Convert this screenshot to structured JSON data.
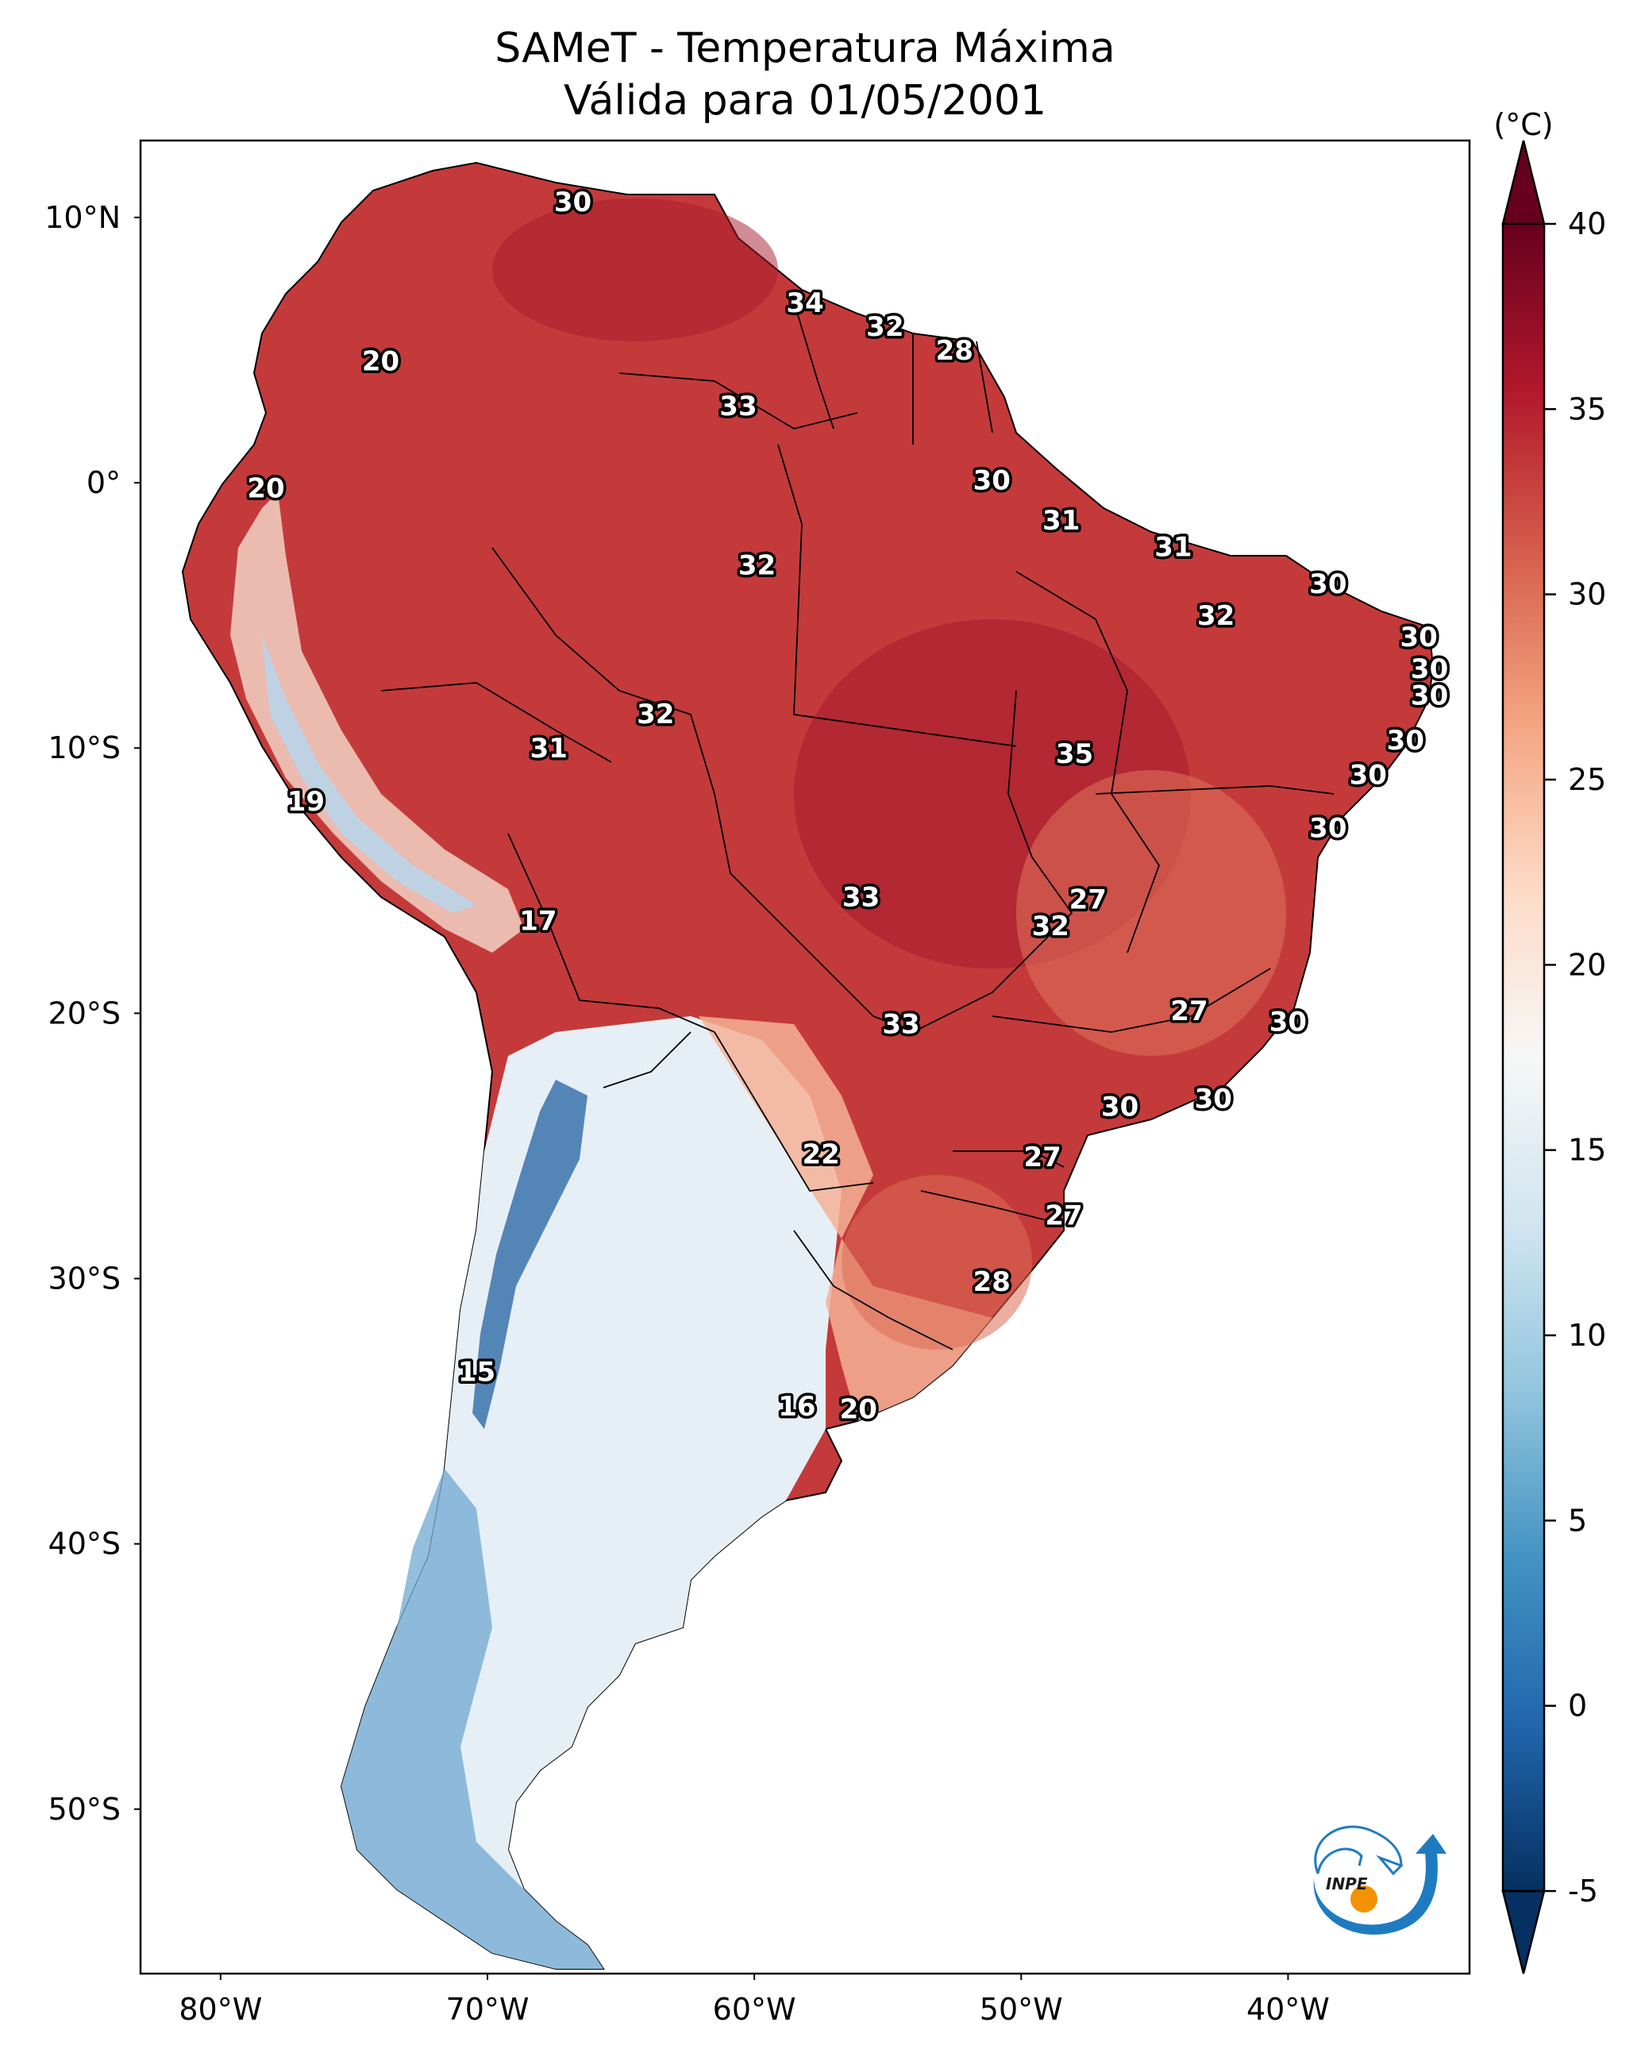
{
  "title": {
    "line1": "SAMeT - Temperatura Máxima",
    "line2": "Válida para 01/05/2001"
  },
  "map": {
    "extent": {
      "lon_min": -83.0,
      "lon_max": -33.2,
      "lat_min": -56.2,
      "lat_max": 12.9
    },
    "lon_ticks": [
      {
        "value": -80,
        "label": "80°W"
      },
      {
        "value": -70,
        "label": "70°W"
      },
      {
        "value": -60,
        "label": "60°W"
      },
      {
        "value": -50,
        "label": "50°W"
      },
      {
        "value": -40,
        "label": "40°W"
      }
    ],
    "lat_ticks": [
      {
        "value": 10,
        "label": "10°N"
      },
      {
        "value": 0,
        "label": "0°"
      },
      {
        "value": -10,
        "label": "10°S"
      },
      {
        "value": -20,
        "label": "20°S"
      },
      {
        "value": -30,
        "label": "30°S"
      },
      {
        "value": -40,
        "label": "40°S"
      },
      {
        "value": -50,
        "label": "50°S"
      }
    ],
    "variable": "Temperatura Máxima",
    "units": "°C",
    "labels": [
      {
        "lon": -66.8,
        "lat": 10.6,
        "text": "30"
      },
      {
        "lon": -58.1,
        "lat": 6.8,
        "text": "34"
      },
      {
        "lon": -55.1,
        "lat": 5.9,
        "text": "32"
      },
      {
        "lon": -52.5,
        "lat": 5.0,
        "text": "28"
      },
      {
        "lon": -60.6,
        "lat": 2.9,
        "text": "33"
      },
      {
        "lon": -74.0,
        "lat": 4.6,
        "text": "20"
      },
      {
        "lon": -78.3,
        "lat": -0.2,
        "text": "20"
      },
      {
        "lon": -51.1,
        "lat": 0.1,
        "text": "30"
      },
      {
        "lon": -48.5,
        "lat": -1.4,
        "text": "31"
      },
      {
        "lon": -44.3,
        "lat": -2.4,
        "text": "31"
      },
      {
        "lon": -59.9,
        "lat": -3.1,
        "text": "32"
      },
      {
        "lon": -38.5,
        "lat": -3.8,
        "text": "30"
      },
      {
        "lon": -42.7,
        "lat": -5.0,
        "text": "32"
      },
      {
        "lon": -35.1,
        "lat": -5.8,
        "text": "30"
      },
      {
        "lon": -34.7,
        "lat": -7.0,
        "text": "30"
      },
      {
        "lon": -34.7,
        "lat": -8.0,
        "text": "30"
      },
      {
        "lon": -35.6,
        "lat": -9.7,
        "text": "30"
      },
      {
        "lon": -37.0,
        "lat": -11.0,
        "text": "30"
      },
      {
        "lon": -38.5,
        "lat": -13.0,
        "text": "30"
      },
      {
        "lon": -63.7,
        "lat": -8.7,
        "text": "32"
      },
      {
        "lon": -67.7,
        "lat": -10.0,
        "text": "31"
      },
      {
        "lon": -48.0,
        "lat": -10.2,
        "text": "35"
      },
      {
        "lon": -76.8,
        "lat": -12.0,
        "text": "19"
      },
      {
        "lon": -68.1,
        "lat": -16.5,
        "text": "17"
      },
      {
        "lon": -56.0,
        "lat": -15.6,
        "text": "33"
      },
      {
        "lon": -47.5,
        "lat": -15.7,
        "text": "27"
      },
      {
        "lon": -48.9,
        "lat": -16.7,
        "text": "32"
      },
      {
        "lon": -54.5,
        "lat": -20.4,
        "text": "33"
      },
      {
        "lon": -43.7,
        "lat": -19.9,
        "text": "27"
      },
      {
        "lon": -40.0,
        "lat": -20.3,
        "text": "30"
      },
      {
        "lon": -42.8,
        "lat": -23.2,
        "text": "30"
      },
      {
        "lon": -46.3,
        "lat": -23.5,
        "text": "30"
      },
      {
        "lon": -57.5,
        "lat": -25.3,
        "text": "22"
      },
      {
        "lon": -49.2,
        "lat": -25.4,
        "text": "27"
      },
      {
        "lon": -48.4,
        "lat": -27.6,
        "text": "27"
      },
      {
        "lon": -51.1,
        "lat": -30.1,
        "text": "28"
      },
      {
        "lon": -70.4,
        "lat": -33.5,
        "text": "15"
      },
      {
        "lon": -58.4,
        "lat": -34.8,
        "text": "16"
      },
      {
        "lon": -56.1,
        "lat": -34.9,
        "text": "20"
      }
    ]
  },
  "colorbar": {
    "label": "(°C)",
    "min": -5,
    "max": 40,
    "extend": "both",
    "ticks": [
      {
        "value": 40,
        "label": "40"
      },
      {
        "value": 35,
        "label": "35"
      },
      {
        "value": 30,
        "label": "30"
      },
      {
        "value": 25,
        "label": "25"
      },
      {
        "value": 20,
        "label": "20"
      },
      {
        "value": 15,
        "label": "15"
      },
      {
        "value": 10,
        "label": "10"
      },
      {
        "value": 5,
        "label": "5"
      },
      {
        "value": 0,
        "label": "0"
      },
      {
        "value": -5,
        "label": "-5"
      }
    ],
    "colormap": "RdBu_r",
    "colors": [
      "#053061",
      "#2166ac",
      "#4393c3",
      "#92c5de",
      "#d1e5f0",
      "#f7f7f7",
      "#fddbc7",
      "#f4a582",
      "#d6604d",
      "#b2182b",
      "#67001f"
    ]
  },
  "logo": {
    "text": "INPE",
    "blue": "#1f7bc0",
    "orange": "#f39200"
  }
}
